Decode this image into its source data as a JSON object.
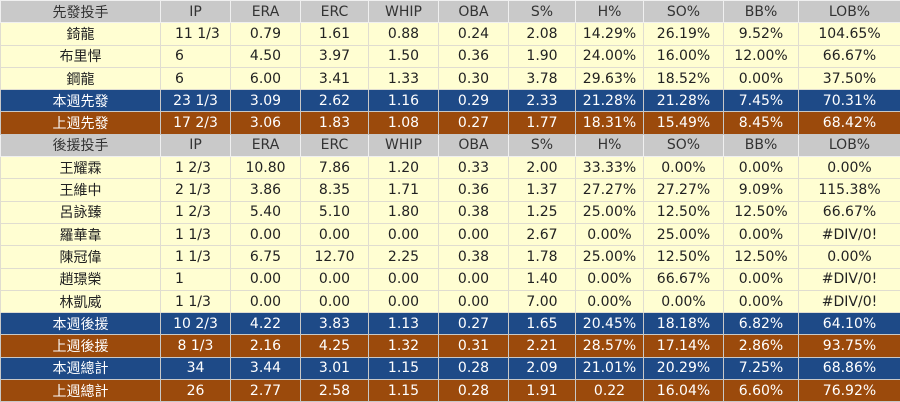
{
  "columns": [
    "IP",
    "ERA",
    "ERC",
    "WHIP",
    "OBA",
    "S%",
    "H%",
    "SO%",
    "BB%",
    "LOB%"
  ],
  "colors": {
    "header": "#c9c9c9",
    "data": "#fffed2",
    "this_week": "#1e4a87",
    "last_week": "#9b4a0c"
  },
  "rows": [
    {
      "type": "hdr",
      "label": "先發投手",
      "cells": [
        "IP",
        "ERA",
        "ERC",
        "WHIP",
        "OBA",
        "S%",
        "H%",
        "SO%",
        "BB%",
        "LOB%"
      ]
    },
    {
      "type": "data",
      "label": "錡龍",
      "cells": [
        "11 1/3",
        "0.79",
        "1.61",
        "0.88",
        "0.24",
        "2.08",
        "14.29%",
        "26.19%",
        "9.52%",
        "104.65%"
      ]
    },
    {
      "type": "data",
      "label": "布里悍",
      "cells": [
        "6",
        "4.50",
        "3.97",
        "1.50",
        "0.36",
        "1.90",
        "24.00%",
        "16.00%",
        "12.00%",
        "66.67%"
      ]
    },
    {
      "type": "data",
      "label": "鋼龍",
      "cells": [
        "6",
        "6.00",
        "3.41",
        "1.33",
        "0.30",
        "3.78",
        "29.63%",
        "18.52%",
        "0.00%",
        "37.50%"
      ]
    },
    {
      "type": "blue",
      "label": "本週先發",
      "cells": [
        "23 1/3",
        "3.09",
        "2.62",
        "1.16",
        "0.29",
        "2.33",
        "21.28%",
        "21.28%",
        "7.45%",
        "70.31%"
      ]
    },
    {
      "type": "brown",
      "label": "上週先發",
      "cells": [
        "17 2/3",
        "3.06",
        "1.83",
        "1.08",
        "0.27",
        "1.77",
        "18.31%",
        "15.49%",
        "8.45%",
        "68.42%"
      ]
    },
    {
      "type": "hdr",
      "label": "後援投手",
      "cells": [
        "IP",
        "ERA",
        "ERC",
        "WHIP",
        "OBA",
        "S%",
        "H%",
        "SO%",
        "BB%",
        "LOB%"
      ]
    },
    {
      "type": "data",
      "label": "王耀霖",
      "cells": [
        "1 2/3",
        "10.80",
        "7.86",
        "1.20",
        "0.33",
        "2.00",
        "33.33%",
        "0.00%",
        "0.00%",
        "0.00%"
      ]
    },
    {
      "type": "data",
      "label": "王維中",
      "cells": [
        "2 1/3",
        "3.86",
        "8.35",
        "1.71",
        "0.36",
        "1.37",
        "27.27%",
        "27.27%",
        "9.09%",
        "115.38%"
      ]
    },
    {
      "type": "data",
      "label": "呂詠臻",
      "cells": [
        "1 2/3",
        "5.40",
        "5.10",
        "1.80",
        "0.38",
        "1.25",
        "25.00%",
        "12.50%",
        "12.50%",
        "66.67%"
      ]
    },
    {
      "type": "data",
      "label": "羅華韋",
      "cells": [
        "1 1/3",
        "0.00",
        "0.00",
        "0.00",
        "0.00",
        "2.67",
        "0.00%",
        "25.00%",
        "0.00%",
        "#DIV/0!"
      ]
    },
    {
      "type": "data",
      "label": "陳冠偉",
      "cells": [
        "1 1/3",
        "6.75",
        "12.70",
        "2.25",
        "0.38",
        "1.78",
        "25.00%",
        "12.50%",
        "12.50%",
        "0.00%"
      ]
    },
    {
      "type": "data",
      "label": "趙璟榮",
      "cells": [
        "1",
        "0.00",
        "0.00",
        "0.00",
        "0.00",
        "1.40",
        "0.00%",
        "66.67%",
        "0.00%",
        "#DIV/0!"
      ]
    },
    {
      "type": "data",
      "label": "林凱威",
      "cells": [
        "1 1/3",
        "0.00",
        "0.00",
        "0.00",
        "0.00",
        "7.00",
        "0.00%",
        "0.00%",
        "0.00%",
        "#DIV/0!"
      ]
    },
    {
      "type": "blue",
      "label": "本週後援",
      "cells": [
        "10 2/3",
        "4.22",
        "3.83",
        "1.13",
        "0.27",
        "1.65",
        "20.45%",
        "18.18%",
        "6.82%",
        "64.10%"
      ]
    },
    {
      "type": "brown",
      "label": "上週後援",
      "cells": [
        "8 1/3",
        "2.16",
        "4.25",
        "1.32",
        "0.31",
        "2.21",
        "28.57%",
        "17.14%",
        "2.86%",
        "93.75%"
      ]
    },
    {
      "type": "blue",
      "label": "本週總計",
      "cells": [
        "34",
        "3.44",
        "3.01",
        "1.15",
        "0.28",
        "2.09",
        "21.01%",
        "20.29%",
        "7.25%",
        "68.86%"
      ]
    },
    {
      "type": "brown",
      "label": "上週總計",
      "cells": [
        "26",
        "2.77",
        "2.58",
        "1.15",
        "0.28",
        "1.91",
        "0.22",
        "16.04%",
        "6.60%",
        "76.92%"
      ]
    }
  ]
}
